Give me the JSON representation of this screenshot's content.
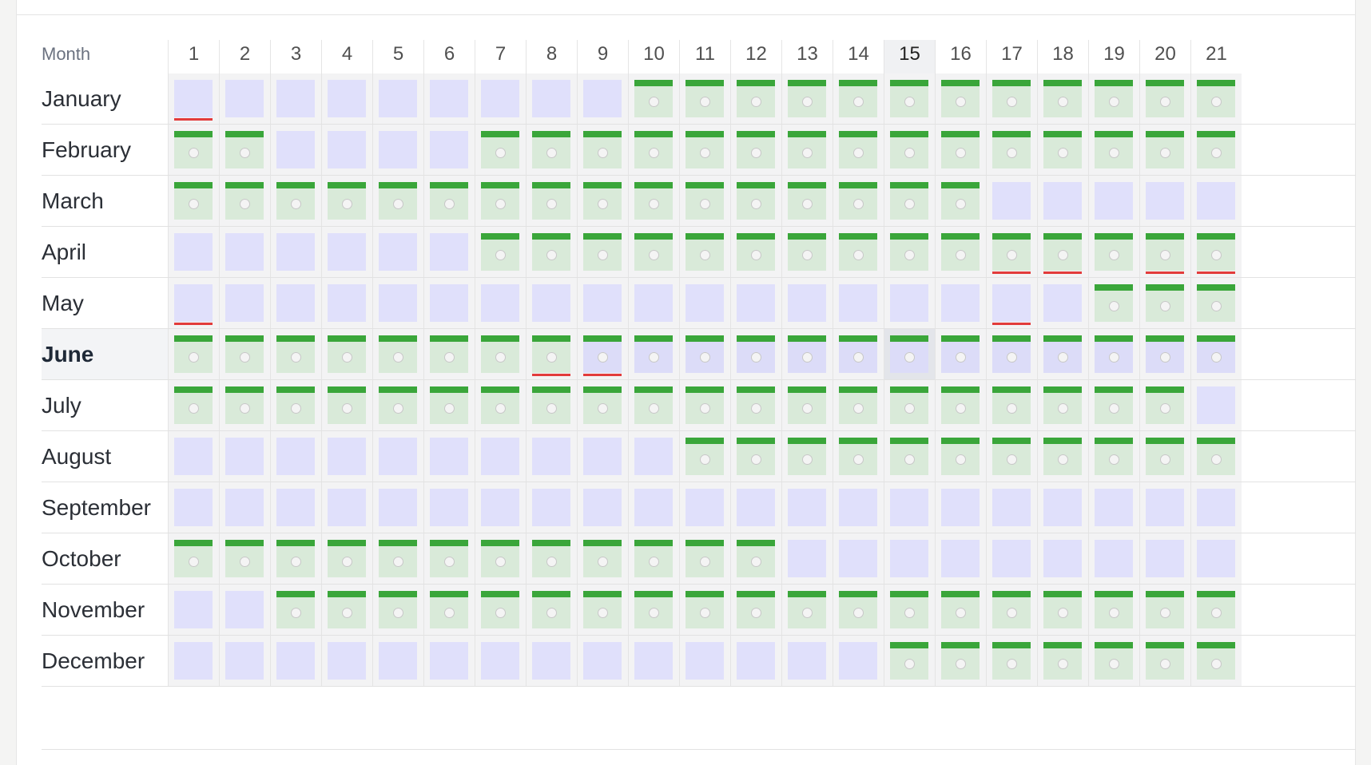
{
  "header": {
    "month_label": "Month",
    "days": [
      "1",
      "2",
      "3",
      "4",
      "5",
      "6",
      "7",
      "8",
      "9",
      "10",
      "11",
      "12",
      "13",
      "14",
      "15",
      "16",
      "17",
      "18",
      "19",
      "20",
      "21"
    ],
    "highlight_day": 15
  },
  "colors": {
    "empty_cell": "#e0e0fb",
    "filled_cell": "#d9ead9",
    "bar": "#3aa63a",
    "alert_line": "#e23b3b"
  },
  "current_month": "June",
  "rows": [
    {
      "month": "January",
      "filled": [
        10,
        11,
        12,
        13,
        14,
        15,
        16,
        17,
        18,
        19,
        20,
        21
      ],
      "red": [
        1
      ]
    },
    {
      "month": "February",
      "filled": [
        1,
        2,
        7,
        8,
        9,
        10,
        11,
        12,
        13,
        14,
        15,
        16,
        17,
        18,
        19,
        20,
        21
      ],
      "red": []
    },
    {
      "month": "March",
      "filled": [
        1,
        2,
        3,
        4,
        5,
        6,
        7,
        8,
        9,
        10,
        11,
        12,
        13,
        14,
        15,
        16
      ],
      "red": []
    },
    {
      "month": "April",
      "filled": [
        7,
        8,
        9,
        10,
        11,
        12,
        13,
        14,
        15,
        16,
        17,
        18,
        19,
        20,
        21
      ],
      "red": [
        17,
        18,
        20,
        21
      ]
    },
    {
      "month": "May",
      "filled": [
        19,
        20,
        21
      ],
      "red": [
        1,
        17
      ]
    },
    {
      "month": "June",
      "filled": [
        1,
        2,
        3,
        4,
        5,
        6,
        7,
        8,
        9,
        10,
        11,
        12,
        13,
        14,
        15,
        16,
        17,
        18,
        19,
        20,
        21
      ],
      "red": [
        8,
        9
      ],
      "tinted_from": 9
    },
    {
      "month": "July",
      "filled": [
        1,
        2,
        3,
        4,
        5,
        6,
        7,
        8,
        9,
        10,
        11,
        12,
        13,
        14,
        15,
        16,
        17,
        18,
        19,
        20
      ],
      "red": []
    },
    {
      "month": "August",
      "filled": [
        11,
        12,
        13,
        14,
        15,
        16,
        17,
        18,
        19,
        20,
        21
      ],
      "red": []
    },
    {
      "month": "September",
      "filled": [],
      "red": []
    },
    {
      "month": "October",
      "filled": [
        1,
        2,
        3,
        4,
        5,
        6,
        7,
        8,
        9,
        10,
        11,
        12
      ],
      "red": []
    },
    {
      "month": "November",
      "filled": [
        3,
        4,
        5,
        6,
        7,
        8,
        9,
        10,
        11,
        12,
        13,
        14,
        15,
        16,
        17,
        18,
        19,
        20,
        21
      ],
      "red": []
    },
    {
      "month": "December",
      "filled": [
        15,
        16,
        17,
        18,
        19,
        20,
        21
      ],
      "red": []
    }
  ]
}
